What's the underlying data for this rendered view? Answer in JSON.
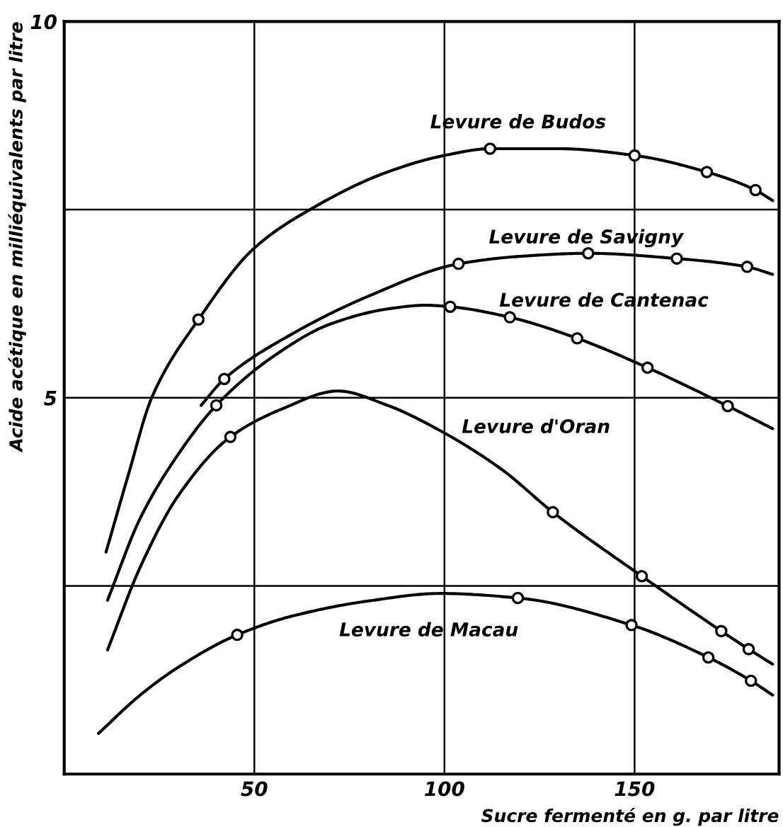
{
  "chart_data": {
    "type": "line",
    "xlabel": "Sucre fermenté en g. par litre",
    "ylabel": "Acide acétique en milliéquivalents par litre",
    "xlim": [
      0,
      188
    ],
    "ylim": [
      0,
      10
    ],
    "xticks": [
      50,
      100,
      150
    ],
    "yticks": [
      {
        "value": 2.5,
        "label": null
      },
      5,
      {
        "value": 7.5,
        "label": null
      },
      10
    ],
    "grid": true,
    "series": [
      {
        "name": "Levure de Budos",
        "color": "#000000",
        "marker": "none",
        "x": [
          11,
          17,
          23,
          35.3,
          50,
          64.6,
          85,
          100,
          112,
          130,
          150,
          169,
          181.8,
          186.3
        ],
        "values": [
          2.95,
          4.0,
          5.0,
          6.04,
          6.99,
          7.5,
          8.0,
          8.22,
          8.31,
          8.31,
          8.22,
          8.0,
          7.76,
          7.62
        ]
      },
      {
        "type": "scatter",
        "color": "#000000",
        "marker": "circle",
        "x": [
          35.3,
          112,
          150,
          169,
          181.8
        ],
        "values": [
          6.04,
          8.31,
          8.22,
          8.0,
          7.76
        ]
      },
      {
        "name": "Levure de Savigny",
        "color": "#000000",
        "marker": "none",
        "x": [
          36,
          42.1,
          60,
          80,
          103.7,
          120,
          137.8,
          161.1,
          179.6,
          186.3
        ],
        "values": [
          4.9,
          5.25,
          5.85,
          6.35,
          6.78,
          6.88,
          6.92,
          6.85,
          6.74,
          6.64
        ]
      },
      {
        "type": "scatter",
        "color": "#000000",
        "marker": "circle",
        "x": [
          42.1,
          103.7,
          137.8,
          161.1,
          179.6
        ],
        "values": [
          5.25,
          6.78,
          6.92,
          6.85,
          6.74
        ]
      },
      {
        "name": "Levure de Cantenac",
        "color": "#000000",
        "marker": "none",
        "x": [
          11.4,
          20,
          30,
          40,
          55,
          70,
          85,
          95,
          101.5,
          117.2,
          134.9,
          153.4,
          174.5,
          186.3
        ],
        "values": [
          2.31,
          3.4,
          4.25,
          4.9,
          5.55,
          5.98,
          6.18,
          6.23,
          6.21,
          6.07,
          5.79,
          5.4,
          4.89,
          4.59
        ]
      },
      {
        "type": "scatter",
        "color": "#000000",
        "marker": "circle",
        "x": [
          40,
          101.5,
          117.2,
          134.9,
          153.4,
          174.5
        ],
        "values": [
          4.9,
          6.21,
          6.07,
          5.79,
          5.4,
          4.89
        ]
      },
      {
        "name": "Levure d'Oran",
        "color": "#000000",
        "marker": "none",
        "x": [
          11.4,
          20,
          30,
          43.7,
          57.2,
          72,
          85,
          99,
          115,
          128.5,
          151.9,
          172.8,
          180,
          186.3
        ],
        "values": [
          1.65,
          2.75,
          3.7,
          4.48,
          4.85,
          5.09,
          4.9,
          4.56,
          4.05,
          3.48,
          2.63,
          1.9,
          1.66,
          1.46
        ]
      },
      {
        "type": "scatter",
        "color": "#000000",
        "marker": "circle",
        "x": [
          43.7,
          128.5,
          151.9,
          172.8,
          180
        ],
        "values": [
          4.48,
          3.48,
          2.63,
          1.9,
          1.66
        ]
      },
      {
        "name": "Levure de Macau",
        "color": "#000000",
        "marker": "none",
        "x": [
          9,
          20,
          30,
          45.5,
          60,
          80,
          99,
          119.3,
          149.2,
          169.4,
          180.6,
          186.3
        ],
        "values": [
          0.54,
          1.05,
          1.42,
          1.85,
          2.1,
          2.3,
          2.4,
          2.34,
          1.98,
          1.55,
          1.24,
          1.05
        ]
      },
      {
        "type": "scatter",
        "color": "#000000",
        "marker": "circle",
        "x": [
          45.5,
          119.3,
          149.2,
          169.4,
          180.6
        ],
        "values": [
          1.85,
          2.34,
          1.98,
          1.55,
          1.24
        ]
      }
    ]
  }
}
